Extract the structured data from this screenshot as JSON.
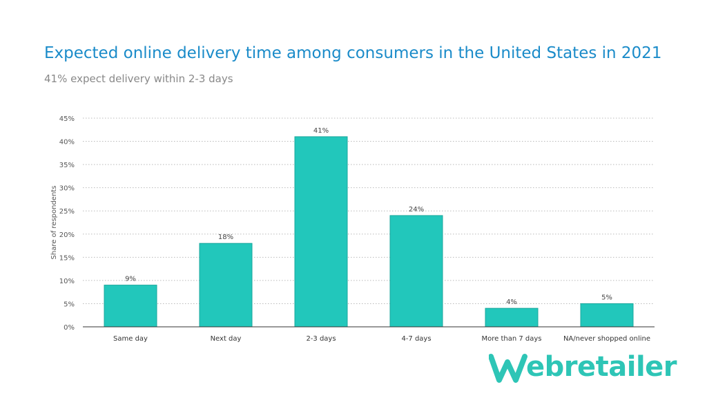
{
  "title": "Expected online delivery time among consumers in the United States in 2021",
  "subtitle": "41% expect delivery within 2-3 days",
  "logo": {
    "text": "ebretailer",
    "full_name": "Webretailer"
  },
  "colors": {
    "bar": "#22c7bb",
    "bar_stroke": "#1aa79c",
    "title": "#1a8bc9",
    "logo": "#2ec5b6"
  },
  "chart_data": {
    "type": "bar",
    "categories": [
      "Same day",
      "Next day",
      "2-3 days",
      "4-7 days",
      "More than 7 days",
      "NA/never shopped online"
    ],
    "values": [
      9,
      18,
      41,
      24,
      4,
      5
    ],
    "value_labels": [
      "9%",
      "18%",
      "41%",
      "24%",
      "4%",
      "5%"
    ],
    "ylabel": "Share of respondents",
    "xlabel": "",
    "ylim": [
      0,
      45
    ],
    "yticks": [
      0,
      5,
      10,
      15,
      20,
      25,
      30,
      35,
      40,
      45
    ],
    "ytick_labels": [
      "0%",
      "5%",
      "10%",
      "15%",
      "20%",
      "25%",
      "30%",
      "35%",
      "40%",
      "45%"
    ],
    "grid": true
  }
}
